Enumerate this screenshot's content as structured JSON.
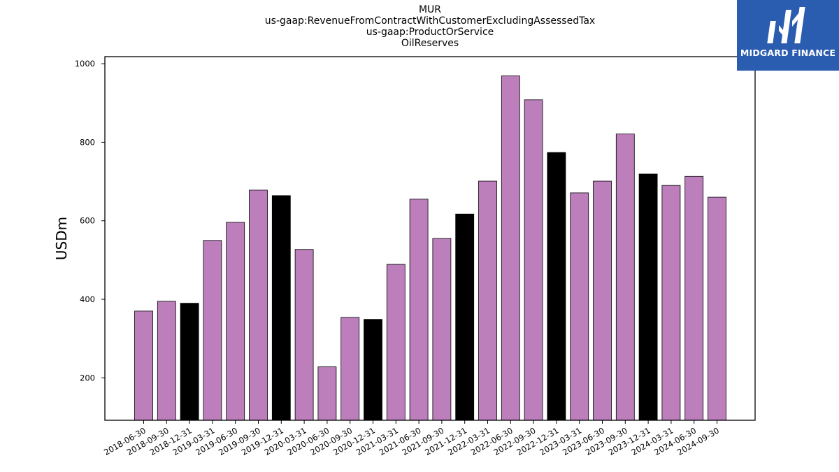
{
  "chart_data": {
    "type": "bar",
    "title_lines": [
      "MUR",
      "us-gaap:RevenueFromContractWithCustomerExcludingAssessedTax",
      "us-gaap:ProductOrService",
      "OilReserves"
    ],
    "ylabel": "USDm",
    "xlabel": "",
    "ylim": [
      92,
      1018
    ],
    "yticks": [
      200,
      400,
      600,
      800,
      1000
    ],
    "grid": false,
    "categories": [
      "2018-06-30",
      "2018-09-30",
      "2018-12-31",
      "2019-03-31",
      "2019-06-30",
      "2019-09-30",
      "2019-12-31",
      "2020-03-31",
      "2020-06-30",
      "2020-09-30",
      "2020-12-31",
      "2021-03-31",
      "2021-06-30",
      "2021-09-30",
      "2021-12-31",
      "2022-03-31",
      "2022-06-30",
      "2022-09-30",
      "2022-12-31",
      "2023-03-31",
      "2023-06-30",
      "2023-09-30",
      "2023-12-31",
      "2024-03-31",
      "2024-06-30",
      "2024-09-30"
    ],
    "values": [
      370,
      395,
      390,
      550,
      596,
      678,
      664,
      527,
      228,
      354,
      349,
      489,
      655,
      555,
      617,
      701,
      969,
      908,
      774,
      671,
      701,
      821,
      719,
      690,
      713,
      660
    ],
    "colors": {
      "default": "#bc7fbc",
      "highlight": "#000000",
      "edge": "#000000"
    },
    "highlighted_categories": [
      "2018-12-31",
      "2019-12-31",
      "2020-12-31",
      "2021-12-31",
      "2022-12-31",
      "2023-12-31"
    ]
  },
  "logo": {
    "text": "MIDGARD FINANCE",
    "background": "#2a5cb0",
    "icon": "midgard-m-icon"
  }
}
